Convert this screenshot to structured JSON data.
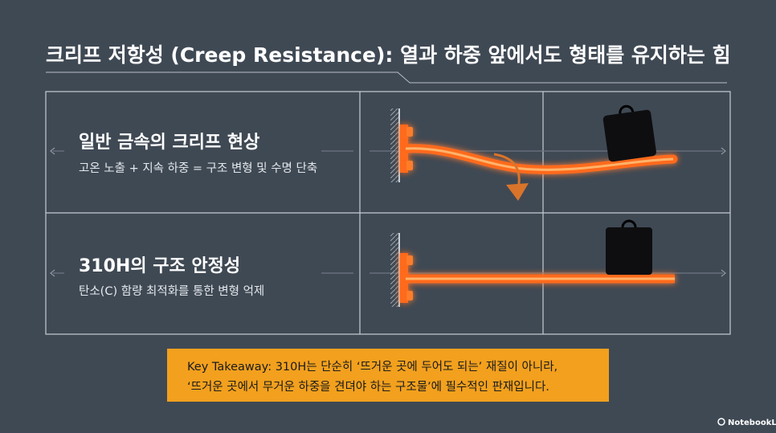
{
  "header": {
    "title": "크리프 저항성 (Creep Resistance): 열과 하중 앞에서도 형태를 유지하는 힘"
  },
  "rows": [
    {
      "heading": "일반 금속의 크리프 현상",
      "subtitle": "고온 노출 + 지속 하중 = 구조 변형 및 수명 단축"
    },
    {
      "heading": "310H의 구조 안정성",
      "subtitle": "탄소(C) 함량 최적화를 통한 변형 억제"
    }
  ],
  "takeaway": {
    "lines": [
      "Key Takeaway: 310H는 단순히 ‘뜨거운 곳에 두어도 되는’ 재질이 아니라,",
      "‘뜨거운 곳에서 무거운 하중을 견뎌야 하는 구조물’에 필수적인 판재입니다."
    ]
  },
  "brand": "NotebookLM"
}
